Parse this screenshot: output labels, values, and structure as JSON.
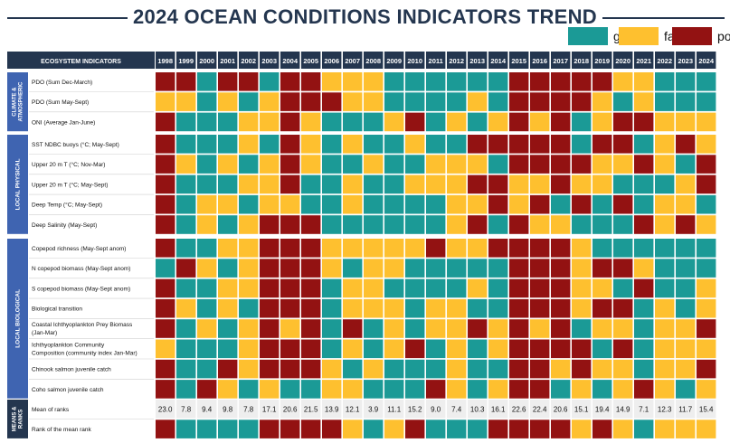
{
  "title": "2024 OCEAN CONDITIONS INDICATORS TREND",
  "legend": [
    {
      "key": "g",
      "label": "good",
      "color": "#1b9a96"
    },
    {
      "key": "f",
      "label": "fair",
      "color": "#fec02f"
    },
    {
      "key": "p",
      "label": "poor",
      "color": "#931212"
    }
  ],
  "chart_data": {
    "type": "table",
    "header_label": "ECOSYSTEM INDICATORS",
    "years": [
      "1998",
      "1999",
      "2000",
      "2001",
      "2002",
      "2003",
      "2004",
      "2005",
      "2006",
      "2007",
      "2008",
      "2009",
      "2010",
      "2011",
      "2012",
      "2013",
      "2014",
      "2015",
      "2016",
      "2017",
      "2018",
      "2019",
      "2020",
      "2021",
      "2022",
      "2023",
      "2024"
    ],
    "groups": [
      {
        "label": "CLIMATE & ATMOSPHERIC",
        "rows": [
          {
            "label": "PDO (Sum Dec-March)",
            "ratings": "ppgppgppfffggggggpppppffggg"
          },
          {
            "label": "PDO (Sum May-Sept)",
            "ratings": "ffgfgfpppffggggfgppppfgfggg"
          },
          {
            "label": "ONI (Average Jan-June)",
            "ratings": "pgggffpfgggfpgfgfpfpgfppfff"
          }
        ]
      },
      {
        "label": "LOCAL PHYSICAL",
        "rows": [
          {
            "label": "SST NDBC buoys (°C; May-Sept)",
            "ratings": "pgggfgpfgfggfggpppppgppgfpf"
          },
          {
            "label": "Upper 20 m T (°C; Nov-Mar)",
            "ratings": "pfgfgfpfggfggfffgppppffpfgp"
          },
          {
            "label": "Upper 20 m T (°C; May-Sept)",
            "ratings": "pgggffpggfggfffppffpffgggfp"
          },
          {
            "label": "Deep Temp (°C; May-Sept)",
            "ratings": "pgffgffggfggggffpfpgpgpgffg"
          },
          {
            "label": "Deep Salinity (May-Sept)",
            "ratings": "pgfgfpppggggggfpgpffgggpfpf"
          }
        ]
      },
      {
        "label": "LOCAL BIOLOGICAL",
        "rows": [
          {
            "label": "Copepod richness (May-Sept anom)",
            "ratings": "pggffpppfffffpffppppfgggggg"
          },
          {
            "label": "N copepod biomass (May-Sept anom)",
            "ratings": "gpfgfpppfgffgggggpppfppfggg"
          },
          {
            "label": "S copepod biomass (May-Sept anom)",
            "ratings": "pggffpppgffggggfgpppffgpggf"
          },
          {
            "label": "Biological transition",
            "ratings": "pfgfgpppgfffgffggpppfppgfgf"
          },
          {
            "label": "Coastal Ichthyoplankton Prey Biomass (Jan-Mar)",
            "ratings": "pgfgfpfpgpgfgffpfpfpgffgffp"
          },
          {
            "label": "Ichthyoplankton Community Composition (community index Jan-Mar)",
            "ratings": "fgggfpppgfgfpgfgfppppgpgfff"
          },
          {
            "label": "Chinook salmon juvenile catch",
            "ratings": "pggpfpppfgfgggfggppfpffgffp"
          },
          {
            "label": "Coho salmon juvenile catch",
            "ratings": "pgpfgfggffgggpfgfppgfgfpfgf"
          }
        ]
      }
    ],
    "summary_label": "MEANS & RANKS",
    "mean_label": "Mean of ranks",
    "means": [
      "23.0",
      "7.8",
      "9.4",
      "9.8",
      "7.8",
      "17.1",
      "20.6",
      "21.5",
      "13.9",
      "12.1",
      "3.9",
      "11.1",
      "15.2",
      "9.0",
      "7.4",
      "10.3",
      "16.1",
      "22.6",
      "22.4",
      "20.6",
      "15.1",
      "19.4",
      "14.9",
      "7.1",
      "12.3",
      "11.7",
      "15.4"
    ],
    "rank_label": "Rank of the mean rank",
    "rank_ratings": "pggggppppfgfpgggppppfpfgfff"
  }
}
